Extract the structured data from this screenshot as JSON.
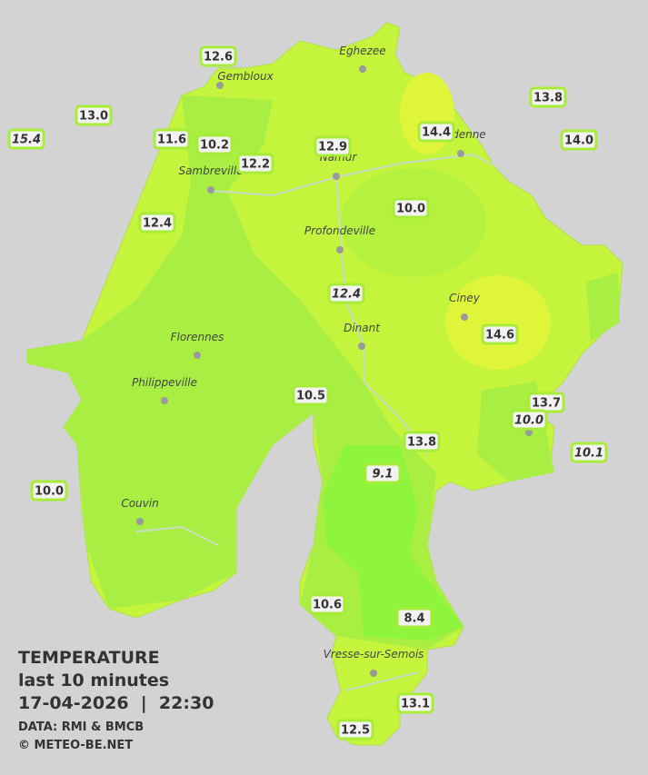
{
  "title": "TEMPERATURE",
  "subtitle": "last 10 minutes",
  "datetime": "17-04-2026  |  22:30",
  "source": "DATA: RMI & BMCB",
  "copyright": "© METEO-BE.NET",
  "cities": [
    "Eghezee",
    "Gembloux",
    "Andenne",
    "Namur",
    "Sambreville",
    "Profondeville",
    "Ciney",
    "Dinant",
    "Florennes",
    "Philippeville",
    "Couvin",
    "Vresse-sur-Semois"
  ],
  "stations": [
    "12.6",
    "13.0",
    "15.4",
    "11.6",
    "10.2",
    "12.2",
    "12.9",
    "14.4",
    "13.8",
    "14.0",
    "12.4",
    "10.0",
    "12.4",
    "14.6",
    "10.5",
    "13.7",
    "10.0",
    "10.1",
    "13.8",
    "9.1",
    "10.0",
    "10.6",
    "8.4",
    "13.1",
    "12.5"
  ]
}
